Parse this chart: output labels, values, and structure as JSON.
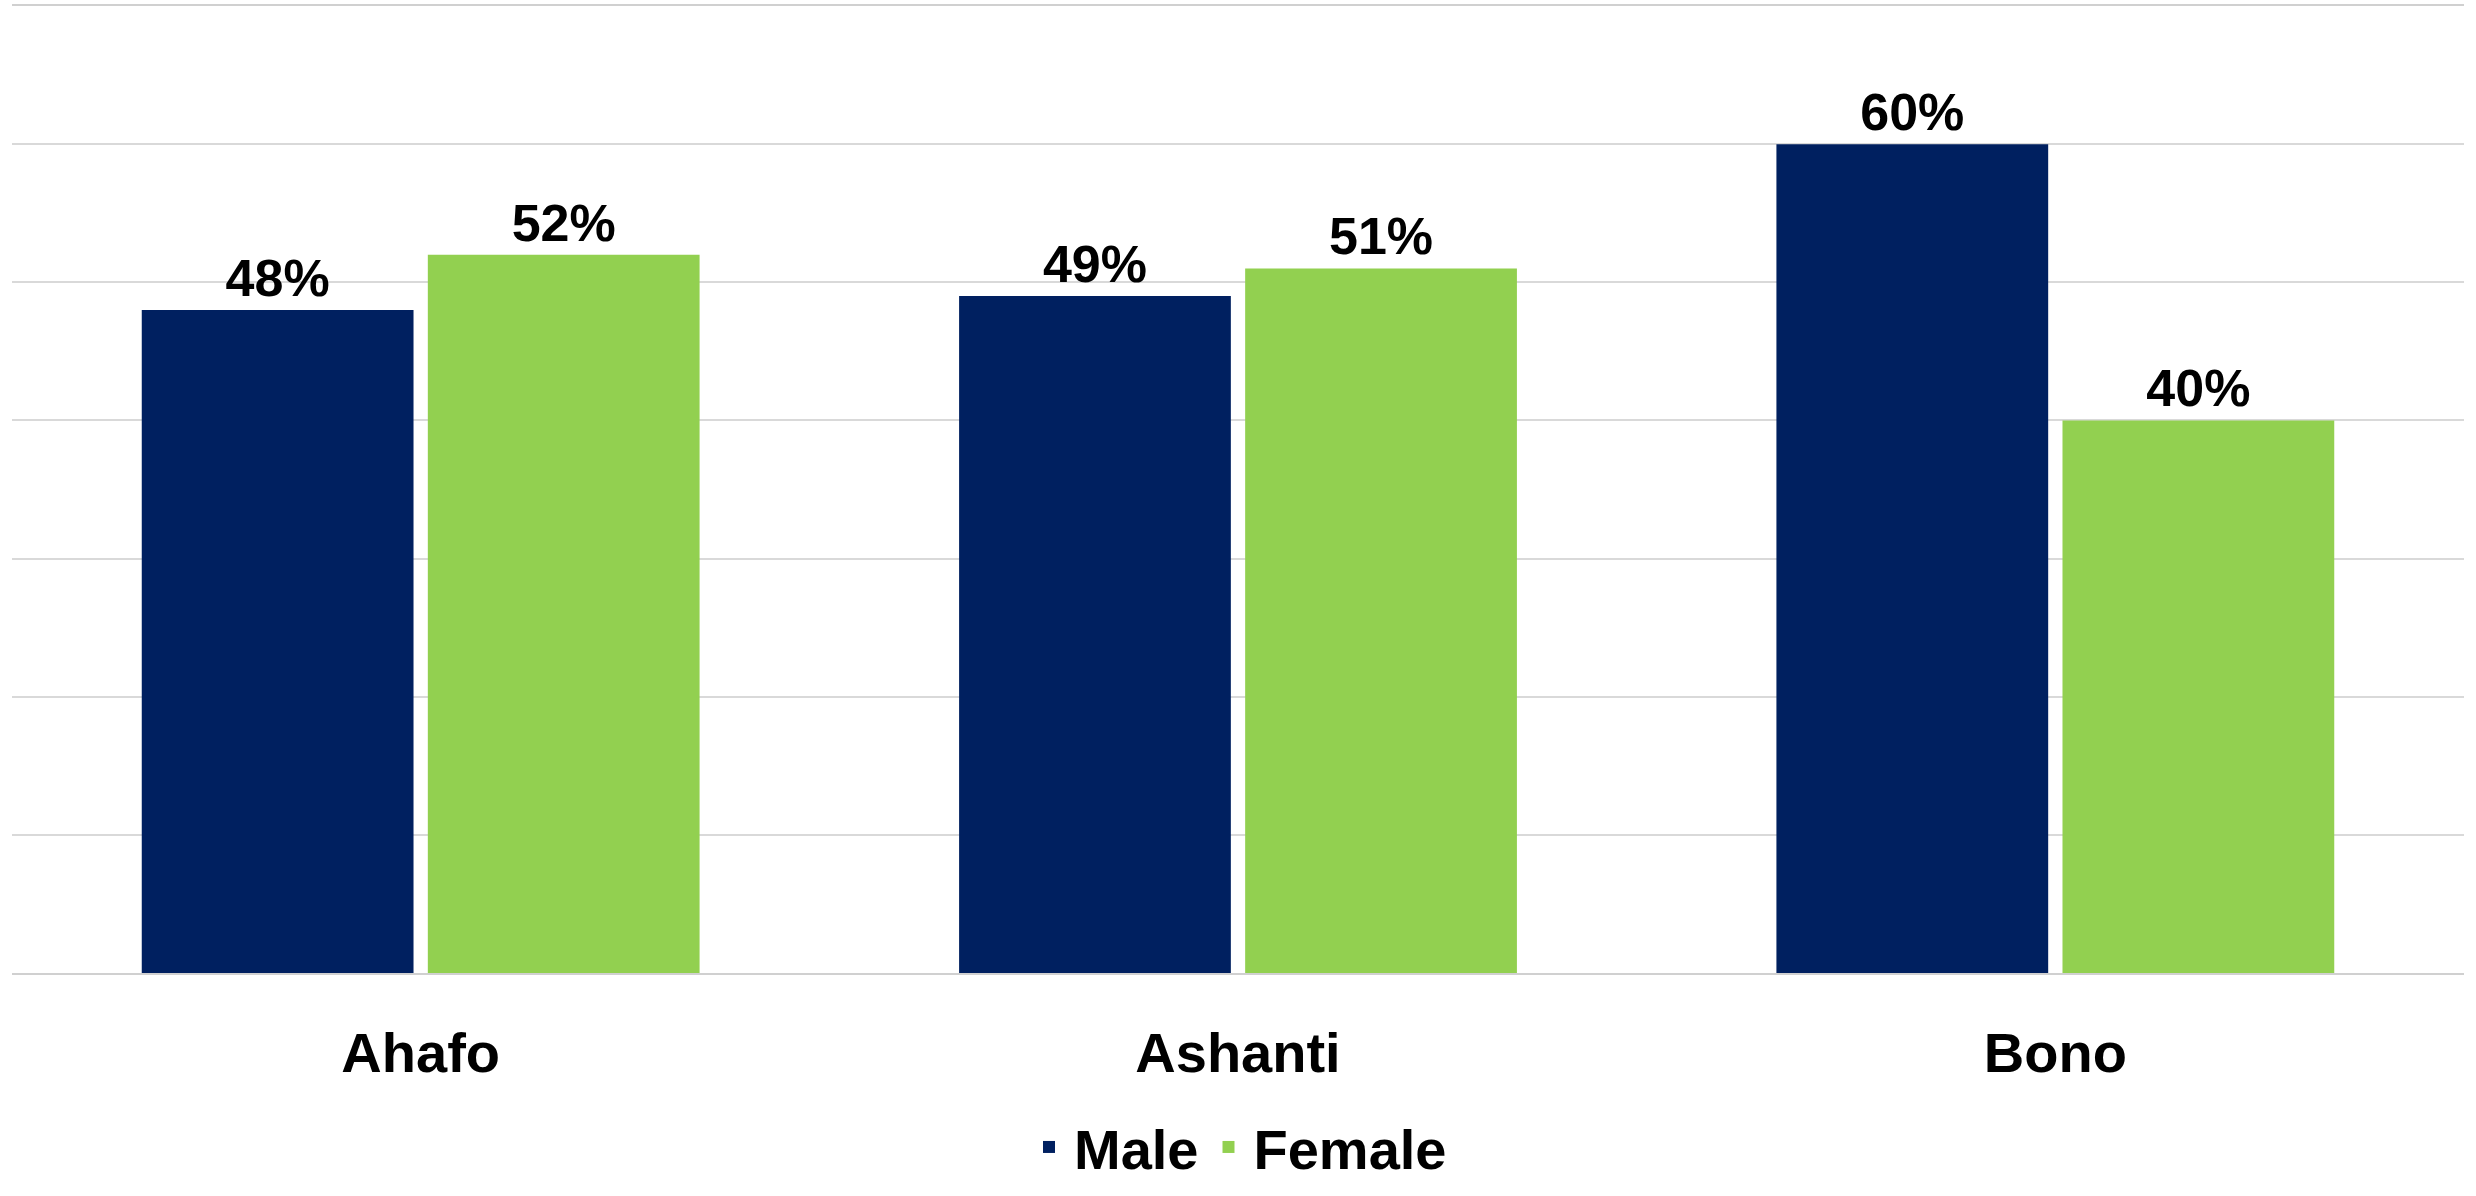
{
  "chart_data": {
    "type": "bar",
    "categories": [
      "Ahafo",
      "Ashanti",
      "Bono"
    ],
    "series": [
      {
        "name": "Male",
        "color": "#002060",
        "values": [
          48,
          49,
          60
        ],
        "value_labels": [
          "48%",
          "49%",
          "60%"
        ]
      },
      {
        "name": "Female",
        "color": "#92d050",
        "values": [
          52,
          51,
          40
        ],
        "value_labels": [
          "52%",
          "51%",
          "40%"
        ]
      }
    ],
    "ylim": [
      0,
      70
    ],
    "yticks": [
      {
        "value": 0,
        "label": null
      },
      {
        "value": 10,
        "label": null
      },
      {
        "value": 20,
        "label": null
      },
      {
        "value": 30,
        "label": null
      },
      {
        "value": 40,
        "label": null
      },
      {
        "value": 50,
        "label": null
      },
      {
        "value": 60,
        "label": null
      },
      {
        "value": 70,
        "label": null
      }
    ],
    "grid": "y",
    "legend": "bottom",
    "tick_labels": "x"
  }
}
